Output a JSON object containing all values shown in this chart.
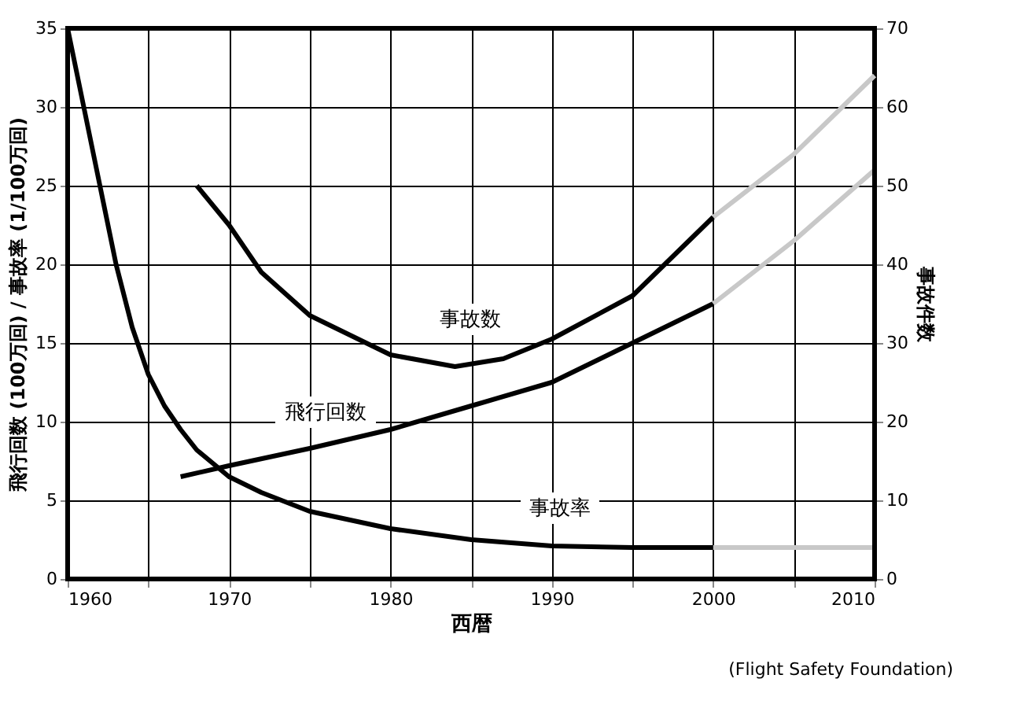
{
  "chart_data": {
    "type": "line",
    "xlabel": "西暦",
    "ylabel": "飛行回数 (100万回) / 事故率 (1/100万回)",
    "y2label": "事故件数",
    "xlim": [
      1960,
      2010
    ],
    "xticks": [
      1960,
      {
        "value": 1965,
        "label": null
      },
      1970,
      {
        "value": 1975,
        "label": null
      },
      1980,
      {
        "value": 1985,
        "label": null
      },
      1990,
      {
        "value": 1995,
        "label": null
      },
      2000,
      {
        "value": 2005,
        "label": null
      },
      2010
    ],
    "ylim": [
      0,
      35
    ],
    "yticks": [
      0,
      5,
      10,
      15,
      20,
      25,
      30,
      35
    ],
    "y2lim": [
      0,
      70
    ],
    "y2ticks": [
      0,
      10,
      20,
      30,
      40,
      50,
      60,
      70
    ],
    "grid": true,
    "legend": false,
    "line_style": "solid",
    "marker": "none",
    "series": [
      {
        "color": "#000000",
        "x": [
          1960,
          1961,
          1962,
          1963,
          1964,
          1965,
          1966,
          1967,
          1968,
          1970,
          1972,
          1975,
          1980,
          1985,
          1990,
          1995,
          2000
        ],
        "values": [
          35,
          30,
          25,
          20,
          16,
          13,
          11,
          9.5,
          8.2,
          6.5,
          5.5,
          4.3,
          3.2,
          2.5,
          2.1,
          2.0,
          2.0
        ]
      },
      {
        "color": "#c8c8c8",
        "x": [
          2000,
          2005,
          2010
        ],
        "values": [
          2.0,
          2.0,
          2.0
        ]
      },
      {
        "color": "#000000",
        "x": [
          1967,
          1970,
          1975,
          1980,
          1985,
          1990,
          1995,
          2000
        ],
        "values": [
          6.5,
          7.2,
          8.3,
          9.5,
          11,
          12.5,
          15,
          17.5
        ]
      },
      {
        "color": "#c8c8c8",
        "x": [
          2000,
          2005,
          2010
        ],
        "values": [
          17.5,
          21.5,
          26
        ]
      },
      {
        "color": "#000000",
        "axis": "y2",
        "x": [
          1968,
          1970,
          1972,
          1975,
          1980,
          1984,
          1987,
          1990,
          1995,
          2000
        ],
        "values": [
          50,
          45,
          39,
          33.5,
          28.5,
          27,
          28,
          30.5,
          36,
          46
        ]
      },
      {
        "color": "#c8c8c8",
        "axis": "y2",
        "x": [
          2000,
          2005,
          2010
        ],
        "values": [
          46,
          54,
          64
        ]
      }
    ],
    "annotations": [
      "事故数",
      "飛行回数",
      "事故率",
      "(Flight Safety Foundation)"
    ]
  }
}
